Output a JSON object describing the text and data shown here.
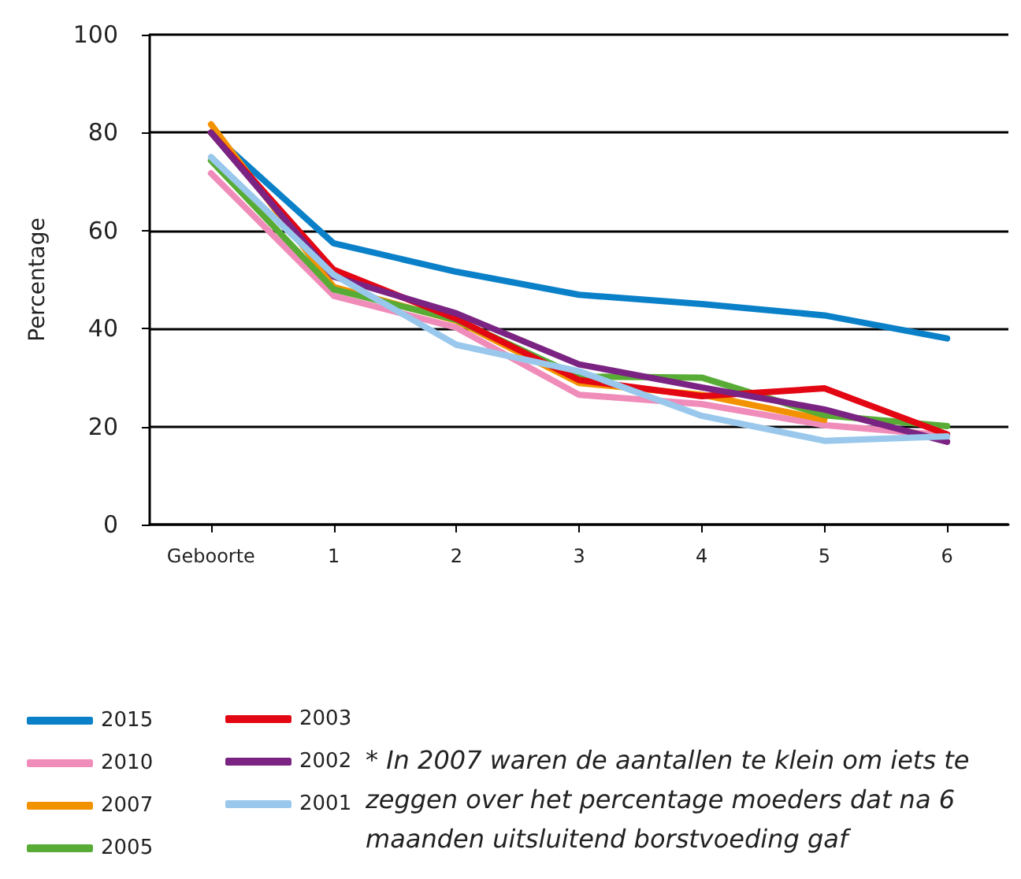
{
  "chart_data": {
    "type": "line",
    "ylabel": "Percentage",
    "categories": [
      "Geboorte",
      "1",
      "2",
      "3",
      "4",
      "5",
      "6"
    ],
    "series": [
      {
        "name": "2015",
        "color": "#0a80c8",
        "values": [
          80,
          57.4,
          51.6,
          46.9,
          45,
          42.7,
          38
        ]
      },
      {
        "name": "2010",
        "color": "#f08cb9",
        "values": [
          71.7,
          46.7,
          40.2,
          26.5,
          24.6,
          20.3,
          18.2
        ]
      },
      {
        "name": "2007",
        "color": "#f39200",
        "values": [
          81.7,
          48.5,
          41.6,
          28.9,
          26.5,
          21.4,
          null
        ]
      },
      {
        "name": "2005",
        "color": "#58ac35",
        "values": [
          74.3,
          48,
          41.8,
          30.2,
          30,
          22.3,
          20.1
        ]
      },
      {
        "name": "2003",
        "color": "#e30613",
        "values": [
          80,
          52,
          42,
          29.5,
          26.2,
          27.8,
          18.4
        ]
      },
      {
        "name": "2002",
        "color": "#7b2382",
        "values": [
          80,
          50.6,
          43.1,
          32.7,
          28,
          23.5,
          16.9
        ]
      },
      {
        "name": "2001",
        "color": "#99c8ec",
        "values": [
          75,
          51,
          36.7,
          31.3,
          22.2,
          17.1,
          18
        ]
      }
    ],
    "ylim": [
      0,
      100
    ],
    "yticks": [
      0,
      20,
      40,
      60,
      80,
      100
    ],
    "grid": "y",
    "legend": "bottom left",
    "marker": "none",
    "line_style": "solid",
    "annotations": [
      "* In 2007 waren de aantallen te klein om iets te zeggen over het percentage moeders dat na 6 maanden uitsluitend borstvoeding gaf"
    ]
  }
}
